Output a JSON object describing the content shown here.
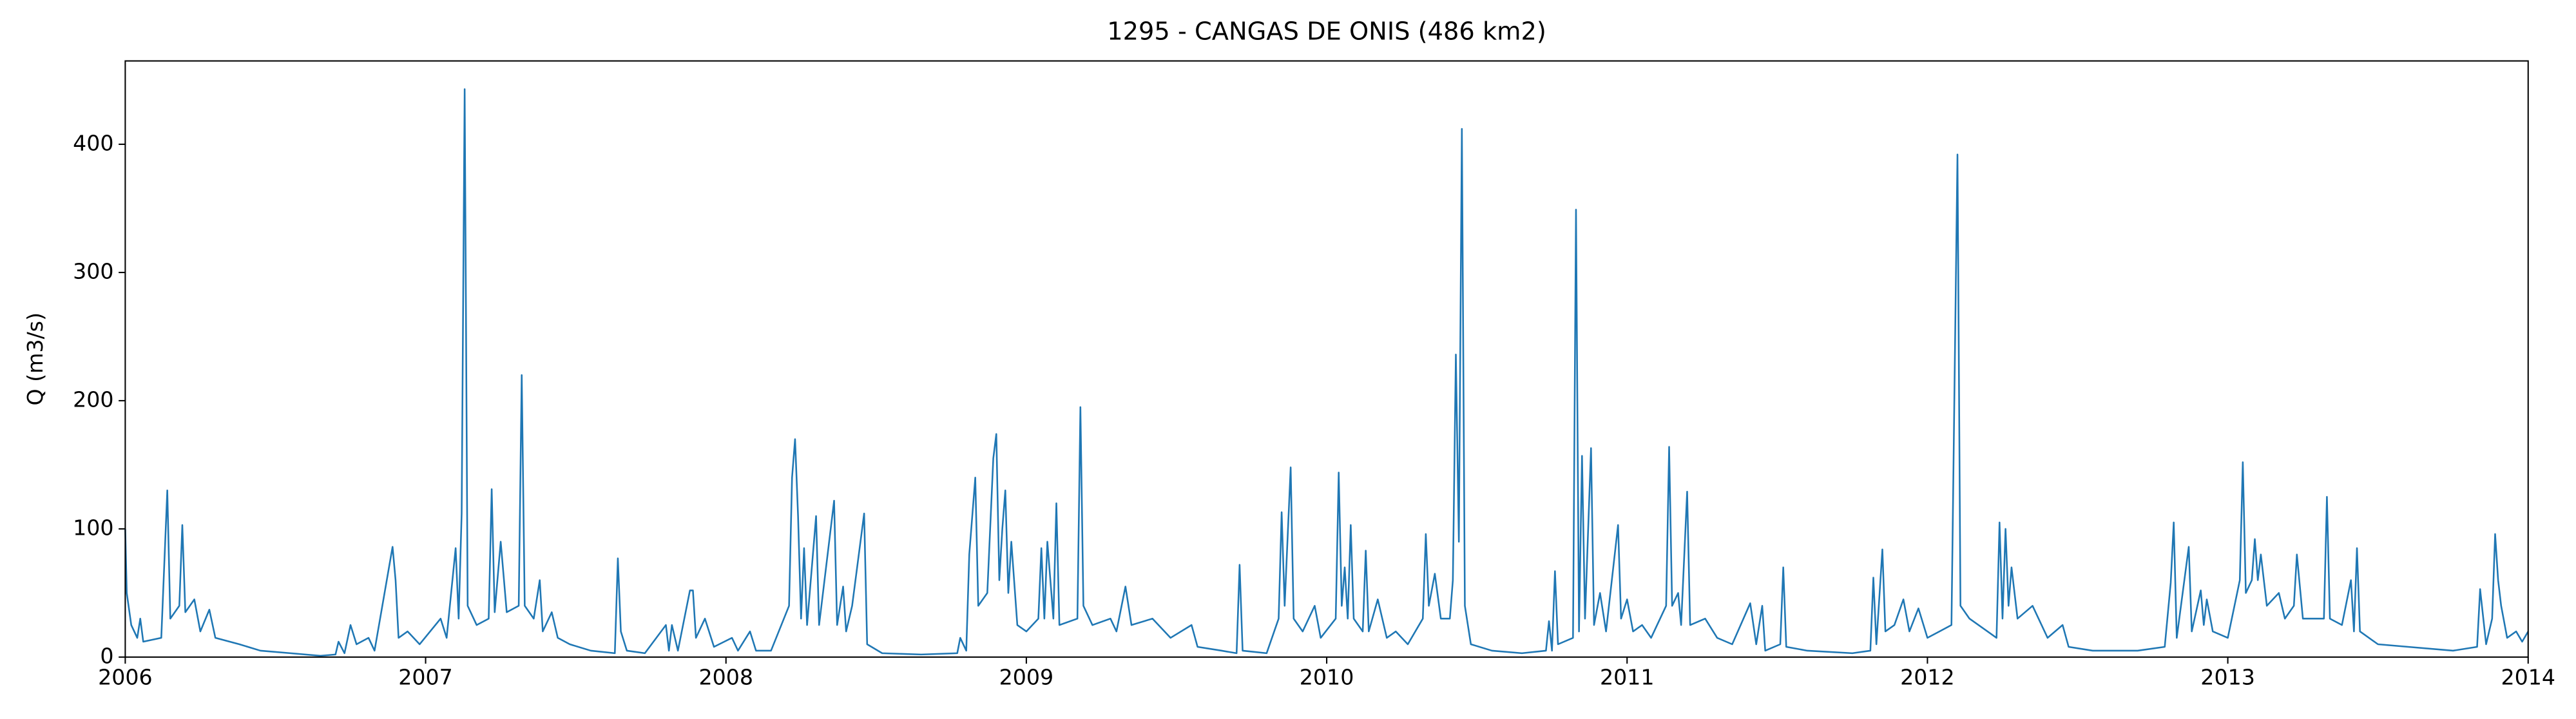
{
  "chart_data": {
    "type": "line",
    "title": "1295 - CANGAS DE ONIS (486 km2)",
    "y_label": "Q (m3/s)",
    "color": "#1f77b4",
    "xlim": [
      2006,
      2014
    ],
    "xticks": [
      2006,
      2007,
      2008,
      2009,
      2010,
      2011,
      2012,
      2013,
      2014
    ],
    "ylim": [
      0,
      465
    ],
    "yticks": [
      0,
      100,
      200,
      300,
      400
    ],
    "x": [
      2006.0,
      2006.005,
      2006.02,
      2006.04,
      2006.05,
      2006.06,
      2006.12,
      2006.14,
      2006.15,
      2006.18,
      2006.19,
      2006.2,
      2006.23,
      2006.25,
      2006.28,
      2006.3,
      2006.38,
      2006.45,
      2006.55,
      2006.65,
      2006.7,
      2006.71,
      2006.73,
      2006.75,
      2006.77,
      2006.81,
      2006.83,
      2006.89,
      2006.9,
      2006.91,
      2006.94,
      2006.98,
      2007.05,
      2007.07,
      2007.1,
      2007.11,
      2007.12,
      2007.13,
      2007.14,
      2007.17,
      2007.21,
      2007.22,
      2007.23,
      2007.25,
      2007.27,
      2007.31,
      2007.32,
      2007.33,
      2007.36,
      2007.38,
      2007.39,
      2007.42,
      2007.44,
      2007.48,
      2007.55,
      2007.63,
      2007.64,
      2007.65,
      2007.67,
      2007.73,
      2007.8,
      2007.81,
      2007.82,
      2007.84,
      2007.88,
      2007.89,
      2007.9,
      2007.93,
      2007.96,
      2008.02,
      2008.04,
      2008.08,
      2008.1,
      2008.15,
      2008.21,
      2008.22,
      2008.23,
      2008.24,
      2008.25,
      2008.26,
      2008.27,
      2008.3,
      2008.31,
      2008.36,
      2008.37,
      2008.39,
      2008.4,
      2008.42,
      2008.46,
      2008.47,
      2008.52,
      2008.65,
      2008.77,
      2008.78,
      2008.8,
      2008.81,
      2008.83,
      2008.84,
      2008.87,
      2008.89,
      2008.9,
      2008.91,
      2008.92,
      2008.93,
      2008.94,
      2008.95,
      2008.97,
      2009.0,
      2009.04,
      2009.05,
      2009.06,
      2009.07,
      2009.09,
      2009.1,
      2009.11,
      2009.17,
      2009.18,
      2009.19,
      2009.22,
      2009.28,
      2009.3,
      2009.33,
      2009.35,
      2009.42,
      2009.48,
      2009.55,
      2009.57,
      2009.65,
      2009.7,
      2009.71,
      2009.72,
      2009.8,
      2009.84,
      2009.85,
      2009.86,
      2009.88,
      2009.89,
      2009.92,
      2009.96,
      2009.98,
      2010.03,
      2010.04,
      2010.05,
      2010.06,
      2010.07,
      2010.08,
      2010.09,
      2010.12,
      2010.13,
      2010.14,
      2010.17,
      2010.2,
      2010.23,
      2010.27,
      2010.32,
      2010.33,
      2010.34,
      2010.36,
      2010.38,
      2010.41,
      2010.42,
      2010.43,
      2010.44,
      2010.45,
      2010.46,
      2010.48,
      2010.55,
      2010.65,
      2010.73,
      2010.74,
      2010.75,
      2010.76,
      2010.77,
      2010.82,
      2010.83,
      2010.84,
      2010.85,
      2010.86,
      2010.88,
      2010.89,
      2010.91,
      2010.93,
      2010.97,
      2010.98,
      2011.0,
      2011.02,
      2011.05,
      2011.08,
      2011.13,
      2011.14,
      2011.15,
      2011.17,
      2011.18,
      2011.2,
      2011.21,
      2011.26,
      2011.3,
      2011.35,
      2011.41,
      2011.43,
      2011.45,
      2011.46,
      2011.51,
      2011.52,
      2011.53,
      2011.6,
      2011.75,
      2011.81,
      2011.82,
      2011.83,
      2011.85,
      2011.86,
      2011.89,
      2011.92,
      2011.94,
      2011.97,
      2012.0,
      2012.04,
      2012.08,
      2012.1,
      2012.11,
      2012.14,
      2012.2,
      2012.23,
      2012.24,
      2012.25,
      2012.26,
      2012.27,
      2012.28,
      2012.3,
      2012.35,
      2012.4,
      2012.45,
      2012.47,
      2012.55,
      2012.7,
      2012.79,
      2012.81,
      2012.82,
      2012.83,
      2012.87,
      2012.88,
      2012.91,
      2012.92,
      2012.93,
      2012.95,
      2013.0,
      2013.04,
      2013.05,
      2013.06,
      2013.08,
      2013.09,
      2013.1,
      2013.11,
      2013.13,
      2013.17,
      2013.19,
      2013.22,
      2013.23,
      2013.25,
      2013.32,
      2013.33,
      2013.34,
      2013.38,
      2013.41,
      2013.42,
      2013.43,
      2013.44,
      2013.5,
      2013.6,
      2013.75,
      2013.83,
      2013.84,
      2013.86,
      2013.88,
      2013.89,
      2013.9,
      2013.91,
      2013.93,
      2013.96,
      2013.98,
      2014.0
    ],
    "values": [
      100,
      50,
      25,
      15,
      30,
      12,
      15,
      130,
      30,
      40,
      103,
      35,
      45,
      20,
      37,
      15,
      10,
      5,
      3,
      1,
      2,
      12,
      3,
      25,
      10,
      15,
      5,
      86,
      60,
      15,
      20,
      10,
      30,
      15,
      85,
      30,
      112,
      443,
      40,
      25,
      30,
      131,
      35,
      90,
      35,
      40,
      220,
      40,
      30,
      60,
      20,
      35,
      15,
      10,
      5,
      3,
      77,
      20,
      5,
      3,
      25,
      5,
      25,
      5,
      52,
      52,
      15,
      30,
      8,
      15,
      5,
      20,
      5,
      5,
      40,
      140,
      170,
      110,
      30,
      85,
      25,
      110,
      25,
      122,
      25,
      55,
      20,
      40,
      112,
      10,
      3,
      2,
      3,
      15,
      5,
      80,
      140,
      40,
      50,
      155,
      174,
      60,
      100,
      130,
      50,
      90,
      25,
      20,
      30,
      85,
      30,
      90,
      30,
      120,
      25,
      30,
      195,
      40,
      25,
      30,
      20,
      55,
      25,
      30,
      15,
      25,
      8,
      5,
      3,
      72,
      5,
      3,
      30,
      113,
      40,
      148,
      30,
      20,
      40,
      15,
      30,
      144,
      40,
      70,
      30,
      103,
      30,
      20,
      83,
      20,
      45,
      15,
      20,
      10,
      30,
      96,
      40,
      65,
      30,
      30,
      60,
      236,
      90,
      412,
      40,
      10,
      5,
      3,
      5,
      28,
      5,
      67,
      10,
      15,
      349,
      20,
      157,
      30,
      163,
      25,
      50,
      20,
      103,
      30,
      45,
      20,
      25,
      15,
      40,
      164,
      40,
      50,
      25,
      129,
      25,
      30,
      15,
      10,
      42,
      10,
      40,
      5,
      10,
      70,
      8,
      5,
      3,
      5,
      62,
      10,
      84,
      20,
      25,
      45,
      20,
      38,
      15,
      20,
      25,
      392,
      40,
      30,
      20,
      15,
      105,
      30,
      100,
      40,
      70,
      30,
      40,
      15,
      25,
      8,
      5,
      5,
      8,
      58,
      105,
      15,
      86,
      20,
      52,
      25,
      45,
      20,
      15,
      60,
      152,
      50,
      60,
      92,
      60,
      80,
      40,
      50,
      30,
      40,
      80,
      30,
      30,
      125,
      30,
      25,
      60,
      20,
      85,
      20,
      10,
      8,
      5,
      8,
      53,
      10,
      30,
      96,
      60,
      40,
      15,
      20,
      12,
      20
    ]
  }
}
